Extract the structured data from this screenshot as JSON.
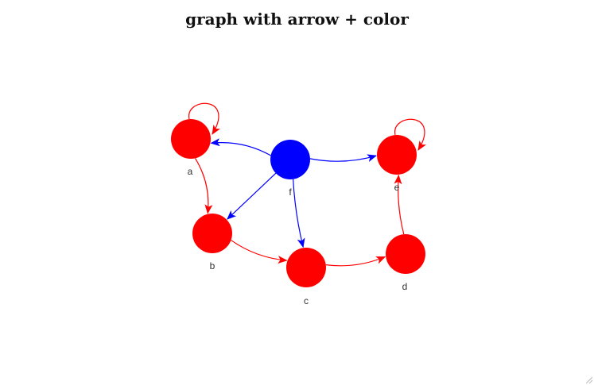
{
  "title": "graph with arrow + color",
  "colors": {
    "red": "#ff0000",
    "blue": "#0000ff"
  },
  "nodes": [
    {
      "id": "a",
      "label": "a",
      "color": "#ff0000"
    },
    {
      "id": "b",
      "label": "b",
      "color": "#ff0000"
    },
    {
      "id": "c",
      "label": "c",
      "color": "#ff0000"
    },
    {
      "id": "d",
      "label": "d",
      "color": "#ff0000"
    },
    {
      "id": "e",
      "label": "e",
      "color": "#ff0000"
    },
    {
      "id": "f",
      "label": "f",
      "color": "#0000ff"
    }
  ],
  "edges": [
    {
      "from": "a",
      "to": "a",
      "color": "#ff0000"
    },
    {
      "from": "a",
      "to": "b",
      "color": "#ff0000"
    },
    {
      "from": "b",
      "to": "c",
      "color": "#ff0000"
    },
    {
      "from": "c",
      "to": "d",
      "color": "#ff0000"
    },
    {
      "from": "d",
      "to": "e",
      "color": "#ff0000"
    },
    {
      "from": "e",
      "to": "e",
      "color": "#ff0000"
    },
    {
      "from": "f",
      "to": "a",
      "color": "#0000ff"
    },
    {
      "from": "f",
      "to": "b",
      "color": "#0000ff"
    },
    {
      "from": "f",
      "to": "c",
      "color": "#0000ff"
    },
    {
      "from": "f",
      "to": "e",
      "color": "#0000ff"
    }
  ]
}
